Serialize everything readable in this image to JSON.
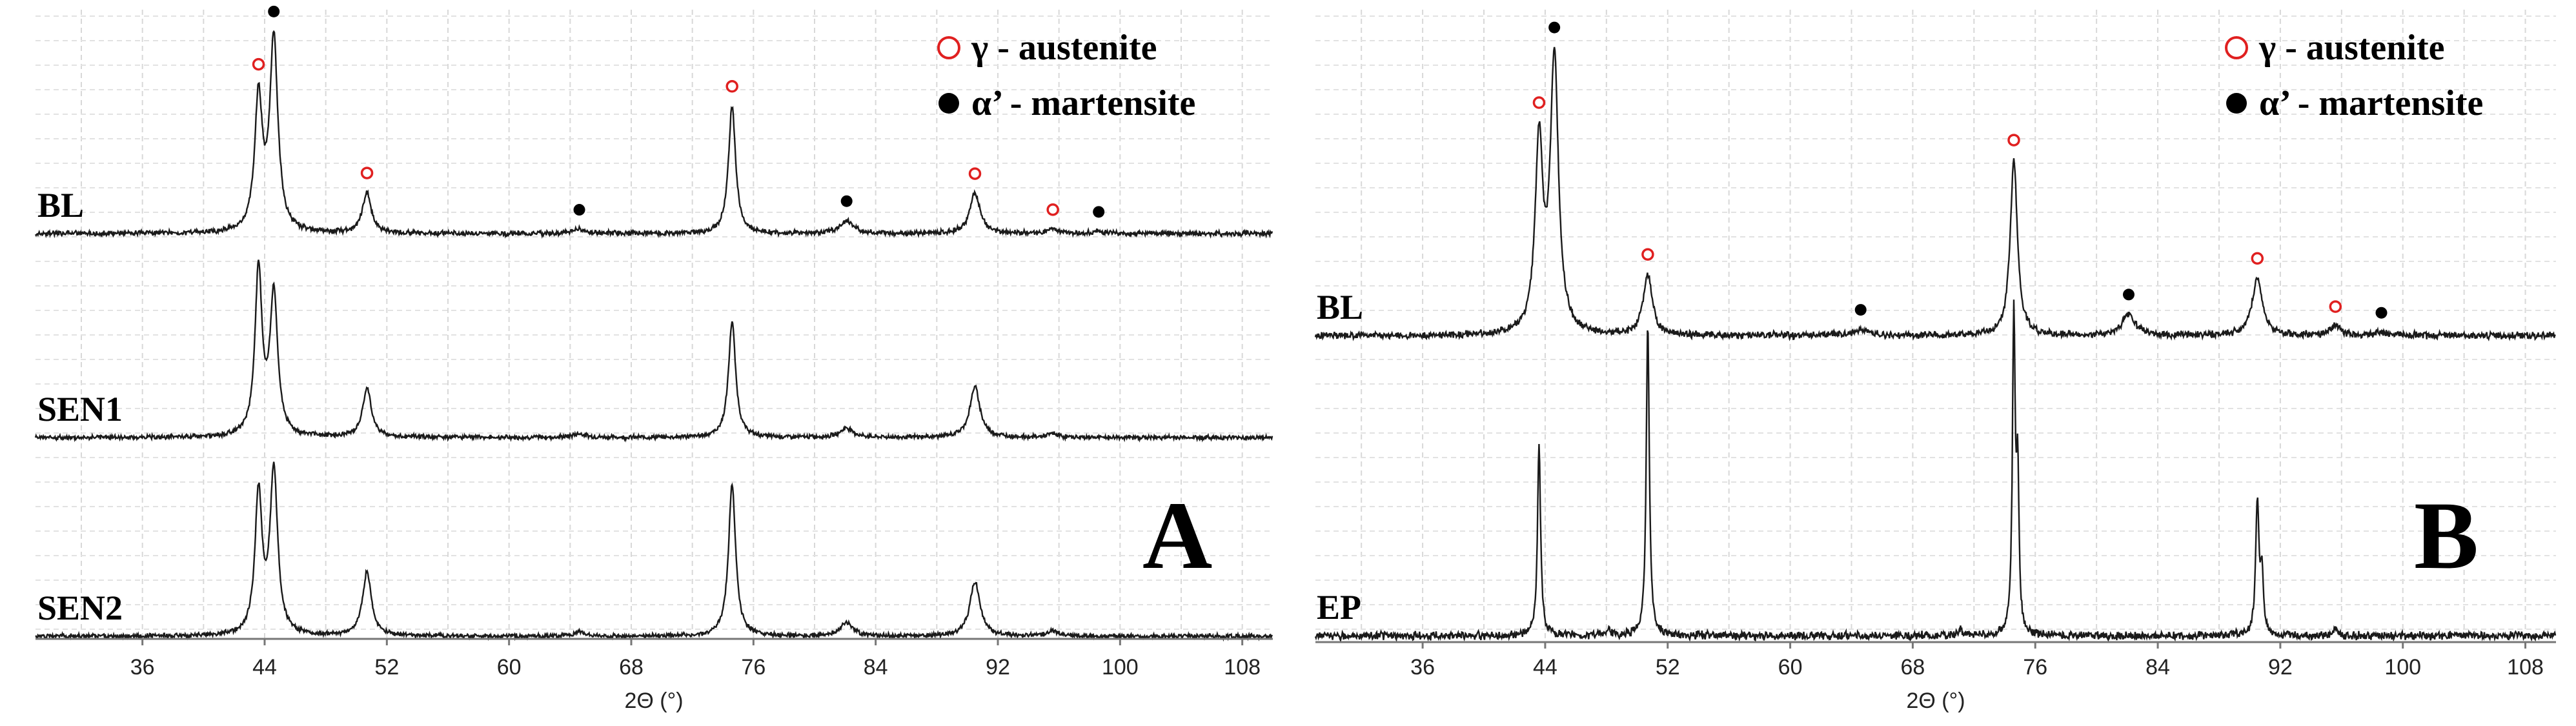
{
  "chart_data": [
    {
      "type": "line",
      "panel": "A",
      "xlabel": "2Θ (°)",
      "xlim": [
        29,
        110
      ],
      "xticks": [
        36,
        44,
        52,
        60,
        68,
        76,
        84,
        92,
        100,
        108
      ],
      "grid": true,
      "legend_position": "top-right",
      "legend": [
        {
          "label": "γ - austenite",
          "marker": "open-circle",
          "color": "#e02020"
        },
        {
          "label": "α’ - martensite",
          "marker": "filled-circle",
          "color": "#000000"
        }
      ],
      "series": [
        {
          "name": "BL",
          "peaks": [
            {
              "x": 43.6,
              "h": 0.62,
              "w": 0.3
            },
            {
              "x": 44.6,
              "h": 0.9,
              "w": 0.32
            },
            {
              "x": 50.7,
              "h": 0.19,
              "w": 0.35
            },
            {
              "x": 64.6,
              "h": 0.02,
              "w": 0.5
            },
            {
              "x": 74.6,
              "h": 0.6,
              "w": 0.28
            },
            {
              "x": 82.1,
              "h": 0.06,
              "w": 0.5
            },
            {
              "x": 90.5,
              "h": 0.19,
              "w": 0.4
            },
            {
              "x": 95.6,
              "h": 0.02,
              "w": 0.4
            },
            {
              "x": 98.6,
              "h": 0.01,
              "w": 0.4
            }
          ]
        },
        {
          "name": "SEN1",
          "peaks": [
            {
              "x": 43.6,
              "h": 0.88,
              "w": 0.28
            },
            {
              "x": 44.6,
              "h": 0.76,
              "w": 0.3
            },
            {
              "x": 50.7,
              "h": 0.26,
              "w": 0.35
            },
            {
              "x": 64.6,
              "h": 0.02,
              "w": 0.5
            },
            {
              "x": 74.6,
              "h": 0.62,
              "w": 0.28
            },
            {
              "x": 82.1,
              "h": 0.05,
              "w": 0.5
            },
            {
              "x": 90.5,
              "h": 0.27,
              "w": 0.4
            },
            {
              "x": 95.6,
              "h": 0.02,
              "w": 0.4
            }
          ]
        },
        {
          "name": "SEN2",
          "peaks": [
            {
              "x": 43.6,
              "h": 0.72,
              "w": 0.28
            },
            {
              "x": 44.6,
              "h": 0.85,
              "w": 0.3
            },
            {
              "x": 50.7,
              "h": 0.33,
              "w": 0.35
            },
            {
              "x": 64.6,
              "h": 0.02,
              "w": 0.5
            },
            {
              "x": 74.6,
              "h": 0.78,
              "w": 0.28
            },
            {
              "x": 82.1,
              "h": 0.07,
              "w": 0.5
            },
            {
              "x": 90.5,
              "h": 0.28,
              "w": 0.4
            },
            {
              "x": 95.6,
              "h": 0.03,
              "w": 0.4
            }
          ]
        }
      ],
      "markers": [
        {
          "series": "BL",
          "x": 43.6,
          "type": "austenite"
        },
        {
          "series": "BL",
          "x": 44.6,
          "type": "martensite"
        },
        {
          "series": "BL",
          "x": 50.7,
          "type": "austenite"
        },
        {
          "series": "BL",
          "x": 64.6,
          "type": "martensite"
        },
        {
          "series": "BL",
          "x": 74.6,
          "type": "austenite"
        },
        {
          "series": "BL",
          "x": 82.1,
          "type": "martensite"
        },
        {
          "series": "BL",
          "x": 90.5,
          "type": "austenite"
        },
        {
          "series": "BL",
          "x": 95.6,
          "type": "austenite"
        },
        {
          "series": "BL",
          "x": 98.6,
          "type": "martensite"
        }
      ]
    },
    {
      "type": "line",
      "panel": "B",
      "xlabel": "2Θ (°)",
      "xlim": [
        29,
        110
      ],
      "xticks": [
        36,
        44,
        52,
        60,
        68,
        76,
        84,
        92,
        100,
        108
      ],
      "grid": true,
      "legend_position": "top-right",
      "legend": [
        {
          "label": "γ - austenite",
          "marker": "open-circle",
          "color": "#e02020"
        },
        {
          "label": "α’ - martensite",
          "marker": "filled-circle",
          "color": "#000000"
        }
      ],
      "series": [
        {
          "name": "BL",
          "peaks": [
            {
              "x": 43.6,
              "h": 0.62,
              "w": 0.3
            },
            {
              "x": 44.6,
              "h": 0.9,
              "w": 0.32
            },
            {
              "x": 50.7,
              "h": 0.2,
              "w": 0.35
            },
            {
              "x": 64.6,
              "h": 0.02,
              "w": 0.5
            },
            {
              "x": 74.6,
              "h": 0.58,
              "w": 0.28
            },
            {
              "x": 82.1,
              "h": 0.07,
              "w": 0.5
            },
            {
              "x": 90.5,
              "h": 0.19,
              "w": 0.4
            },
            {
              "x": 95.6,
              "h": 0.03,
              "w": 0.4
            },
            {
              "x": 98.6,
              "h": 0.01,
              "w": 0.4
            }
          ]
        },
        {
          "name": "EP",
          "peaks": [
            {
              "x": 43.6,
              "h": 0.55,
              "w": 0.12
            },
            {
              "x": 48.1,
              "h": 0.02,
              "w": 0.15
            },
            {
              "x": 50.7,
              "h": 0.9,
              "w": 0.12
            },
            {
              "x": 71.1,
              "h": 0.02,
              "w": 0.15
            },
            {
              "x": 74.6,
              "h": 0.9,
              "w": 0.11
            },
            {
              "x": 74.85,
              "h": 0.42,
              "w": 0.1
            },
            {
              "x": 90.5,
              "h": 0.38,
              "w": 0.13
            },
            {
              "x": 90.8,
              "h": 0.16,
              "w": 0.12
            },
            {
              "x": 95.6,
              "h": 0.02,
              "w": 0.15
            }
          ]
        }
      ],
      "markers": [
        {
          "series": "BL",
          "x": 43.6,
          "type": "austenite"
        },
        {
          "series": "BL",
          "x": 44.6,
          "type": "martensite"
        },
        {
          "series": "BL",
          "x": 50.7,
          "type": "austenite"
        },
        {
          "series": "BL",
          "x": 64.6,
          "type": "martensite"
        },
        {
          "series": "BL",
          "x": 74.6,
          "type": "austenite"
        },
        {
          "series": "BL",
          "x": 82.1,
          "type": "martensite"
        },
        {
          "series": "BL",
          "x": 90.5,
          "type": "austenite"
        },
        {
          "series": "BL",
          "x": 95.6,
          "type": "austenite"
        },
        {
          "series": "BL",
          "x": 98.6,
          "type": "martensite"
        }
      ]
    }
  ]
}
